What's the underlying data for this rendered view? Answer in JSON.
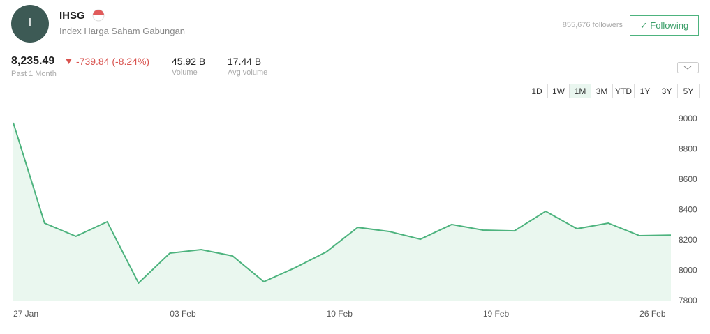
{
  "header": {
    "avatar": "I",
    "ticker": "IHSG",
    "name": "Index Harga Saham Gabungan",
    "followers": "855,676 followers",
    "follow_button": "Following"
  },
  "summary": {
    "price": "8,235.49",
    "change": "-739.84 (-8.24%)",
    "period": "Past 1 Month",
    "volume": "45.92 B",
    "volume_label": "Volume",
    "avg_volume": "17.44 B",
    "avg_volume_label": "Avg volume"
  },
  "range_buttons": [
    "1D",
    "1W",
    "1M",
    "3M",
    "YTD",
    "1Y",
    "3Y",
    "5Y"
  ],
  "chart_data": {
    "type": "line",
    "categories": [
      "27 Jan",
      null,
      null,
      null,
      null,
      "03 Feb",
      null,
      null,
      null,
      null,
      "10 Feb",
      null,
      null,
      null,
      null,
      "19 Feb",
      null,
      null,
      null,
      null,
      "26 Feb",
      null
    ],
    "series": [
      {
        "name": "IHSG",
        "color": "#4db37e",
        "values": [
          8977,
          8315,
          8228,
          8324,
          7920,
          8117,
          8140,
          8099,
          7929,
          8021,
          8126,
          8287,
          8260,
          8209,
          8306,
          8269,
          8264,
          8393,
          8278,
          8315,
          8232,
          8235.49
        ]
      }
    ],
    "ylim": [
      7800,
      9000
    ],
    "yticks": [
      7800,
      8000,
      8200,
      8400,
      8600,
      8800,
      9000
    ],
    "grid": false,
    "area_fill": "#eaf7ef"
  }
}
